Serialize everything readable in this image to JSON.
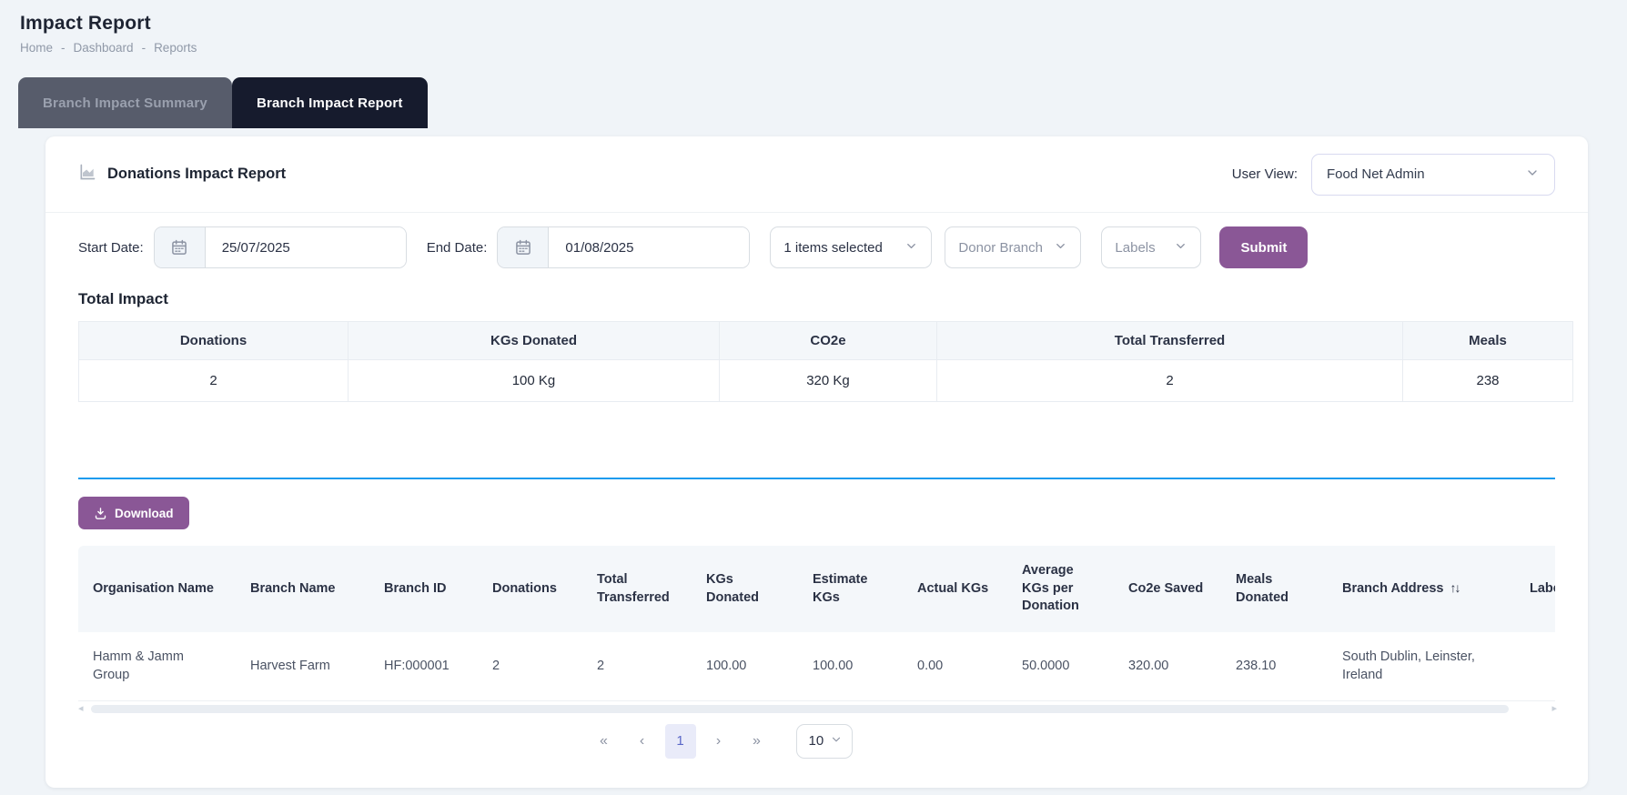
{
  "page": {
    "title": "Impact Report",
    "breadcrumb": [
      "Home",
      "Dashboard",
      "Reports"
    ],
    "breadcrumb_separator": "-"
  },
  "tabs": [
    {
      "label": "Branch Impact Summary",
      "active": false
    },
    {
      "label": "Branch Impact Report",
      "active": true
    }
  ],
  "card": {
    "header": {
      "title": "Donations Impact Report",
      "user_view_label": "User View:",
      "user_view_value": "Food Net Admin"
    },
    "filters": {
      "start_date_label": "Start Date:",
      "start_date_value": "25/07/2025",
      "end_date_label": "End Date:",
      "end_date_value": "01/08/2025",
      "items_selected": "1 items selected",
      "donor_branch": "Donor Branch",
      "labels": "Labels",
      "submit_label": "Submit"
    },
    "total_impact": {
      "title": "Total Impact",
      "columns": [
        "Donations",
        "KGs Donated",
        "CO2e",
        "Total Transferred",
        "Meals"
      ],
      "values": [
        "2",
        "100 Kg",
        "320 Kg",
        "2",
        "238"
      ]
    },
    "download_label": "Download",
    "report_table": {
      "columns": [
        "Organisation Name",
        "Branch Name",
        "Branch ID",
        "Donations",
        "Total Transferred",
        "KGs Donated",
        "Estimate KGs",
        "Actual KGs",
        "Average KGs per Donation",
        "Co2e Saved",
        "Meals Donated",
        "Branch Address",
        "Labels"
      ],
      "sort_column_index": 11,
      "sort_icon": "↑↓",
      "rows": [
        [
          "Hamm & Jamm Group",
          "Harvest Farm",
          "HF:000001",
          "2",
          "2",
          "100.00",
          "100.00",
          "0.00",
          "50.0000",
          "320.00",
          "238.10",
          "South Dublin, Leinster, Ireland",
          ""
        ]
      ]
    },
    "scrollbar": {
      "left_arrow": "◂",
      "right_arrow": "▸"
    },
    "pagination": {
      "first": "«",
      "prev": "‹",
      "current_page": "1",
      "next": "›",
      "last": "»",
      "page_size": "10"
    }
  },
  "colors": {
    "accent_purple": "#8a5796",
    "divider_blue": "#1b9bee",
    "tab_active_bg": "#161b2d",
    "tab_inactive_bg": "#575c6b",
    "table_header_bg": "#f4f7fa",
    "page_bg": "#f0f4f8",
    "pagination_active_bg": "#e9ebf9",
    "pagination_active_text": "#5b68c8"
  }
}
